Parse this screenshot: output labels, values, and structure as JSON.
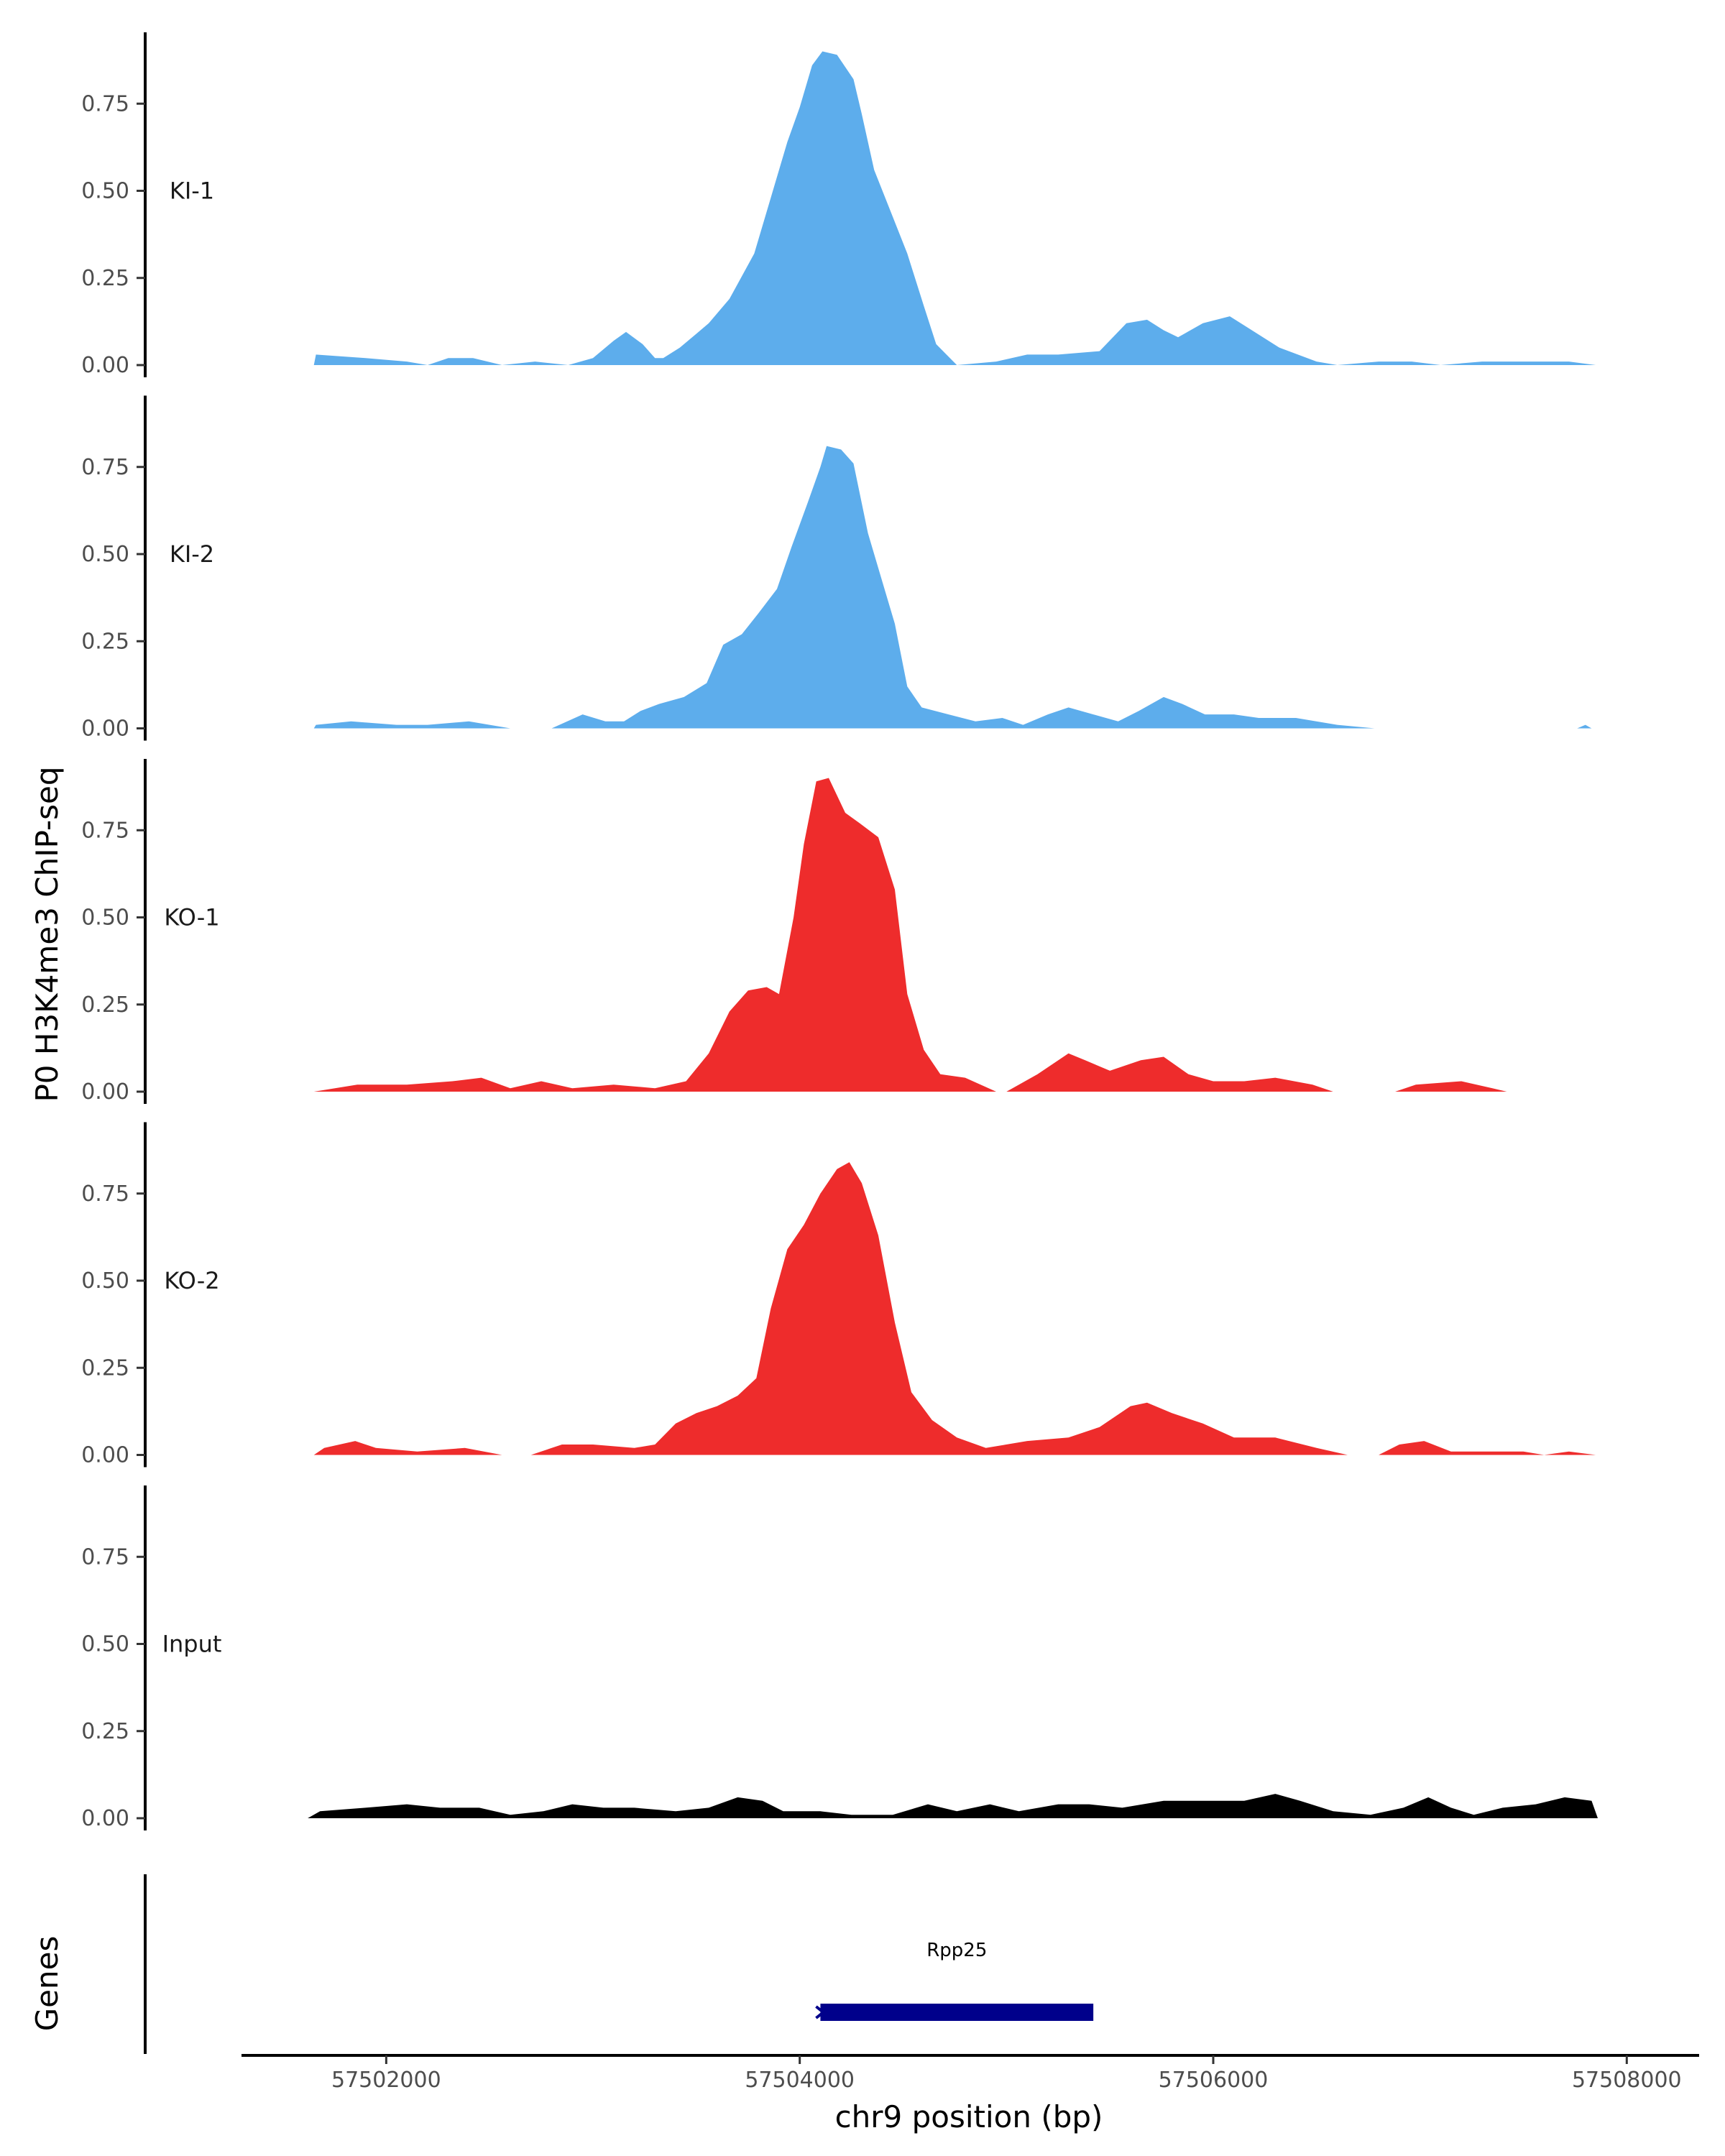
{
  "chart_data": {
    "type": "area",
    "ylabel": "P0 H3K4me3 ChIP-seq",
    "xlabel": "chr9 position (bp)",
    "xlim": [
      57501300,
      57508350
    ],
    "ylim": [
      0,
      0.95
    ],
    "grid": false,
    "y_ticks": [
      0,
      0.25,
      0.5,
      0.75
    ],
    "y_tick_labels": [
      "0.00",
      "0.25",
      "0.50",
      "0.75"
    ],
    "x_ticks": [
      57502000,
      57504000,
      57506000,
      57508000
    ],
    "x_tick_labels": [
      "57502000",
      "57504000",
      "57506000",
      "57508000"
    ],
    "tracks": [
      {
        "name": "KI-1",
        "color": "#5DADEC",
        "points": [
          [
            57501650,
            0
          ],
          [
            57501660,
            0.03
          ],
          [
            57501900,
            0.02
          ],
          [
            57502100,
            0.01
          ],
          [
            57502200,
            0
          ],
          [
            57502300,
            0.02
          ],
          [
            57502420,
            0.02
          ],
          [
            57502560,
            0
          ],
          [
            57502720,
            0.01
          ],
          [
            57502880,
            0
          ],
          [
            57503000,
            0.02
          ],
          [
            57503100,
            0.07
          ],
          [
            57503160,
            0.095
          ],
          [
            57503240,
            0.06
          ],
          [
            57503300,
            0.02
          ],
          [
            57503340,
            0.02
          ],
          [
            57503420,
            0.05
          ],
          [
            57503500,
            0.09
          ],
          [
            57503560,
            0.12
          ],
          [
            57503660,
            0.19
          ],
          [
            57503780,
            0.32
          ],
          [
            57503860,
            0.48
          ],
          [
            57503940,
            0.64
          ],
          [
            57504000,
            0.74
          ],
          [
            57504060,
            0.86
          ],
          [
            57504110,
            0.9
          ],
          [
            57504180,
            0.89
          ],
          [
            57504260,
            0.82
          ],
          [
            57504300,
            0.72
          ],
          [
            57504360,
            0.56
          ],
          [
            57504440,
            0.44
          ],
          [
            57504520,
            0.32
          ],
          [
            57504600,
            0.17
          ],
          [
            57504660,
            0.06
          ],
          [
            57504760,
            0
          ],
          [
            57504950,
            0.01
          ],
          [
            57505100,
            0.03
          ],
          [
            57505250,
            0.03
          ],
          [
            57505450,
            0.04
          ],
          [
            57505580,
            0.12
          ],
          [
            57505680,
            0.13
          ],
          [
            57505760,
            0.1
          ],
          [
            57505830,
            0.08
          ],
          [
            57505950,
            0.12
          ],
          [
            57506080,
            0.14
          ],
          [
            57506160,
            0.11
          ],
          [
            57506320,
            0.05
          ],
          [
            57506500,
            0.01
          ],
          [
            57506600,
            0
          ],
          [
            57506800,
            0.01
          ],
          [
            57506960,
            0.01
          ],
          [
            57507100,
            0
          ],
          [
            57507300,
            0.01
          ],
          [
            57507500,
            0.01
          ],
          [
            57507720,
            0.01
          ],
          [
            57507850,
            0
          ]
        ]
      },
      {
        "name": "KI-2",
        "color": "#5DADEC",
        "points": [
          [
            57501650,
            0
          ],
          [
            57501660,
            0.01
          ],
          [
            57501830,
            0.02
          ],
          [
            57502050,
            0.01
          ],
          [
            57502200,
            0.01
          ],
          [
            57502400,
            0.02
          ],
          [
            57502600,
            0
          ],
          [
            57502800,
            0
          ],
          [
            57502950,
            0.04
          ],
          [
            57503060,
            0.02
          ],
          [
            57503150,
            0.02
          ],
          [
            57503230,
            0.05
          ],
          [
            57503320,
            0.07
          ],
          [
            57503440,
            0.09
          ],
          [
            57503550,
            0.13
          ],
          [
            57503630,
            0.24
          ],
          [
            57503720,
            0.27
          ],
          [
            57503800,
            0.33
          ],
          [
            57503890,
            0.4
          ],
          [
            57503960,
            0.52
          ],
          [
            57504040,
            0.65
          ],
          [
            57504100,
            0.75
          ],
          [
            57504130,
            0.81
          ],
          [
            57504200,
            0.8
          ],
          [
            57504260,
            0.76
          ],
          [
            57504330,
            0.56
          ],
          [
            57504400,
            0.42
          ],
          [
            57504460,
            0.3
          ],
          [
            57504520,
            0.12
          ],
          [
            57504590,
            0.06
          ],
          [
            57504720,
            0.04
          ],
          [
            57504850,
            0.02
          ],
          [
            57504980,
            0.03
          ],
          [
            57505080,
            0.01
          ],
          [
            57505200,
            0.04
          ],
          [
            57505300,
            0.06
          ],
          [
            57505420,
            0.04
          ],
          [
            57505540,
            0.02
          ],
          [
            57505640,
            0.05
          ],
          [
            57505760,
            0.09
          ],
          [
            57505850,
            0.07
          ],
          [
            57505960,
            0.04
          ],
          [
            57506100,
            0.04
          ],
          [
            57506220,
            0.03
          ],
          [
            57506400,
            0.03
          ],
          [
            57506600,
            0.01
          ],
          [
            57506780,
            0
          ],
          [
            57507760,
            0
          ],
          [
            57507800,
            0.01
          ],
          [
            57507830,
            0
          ]
        ]
      },
      {
        "name": "KO-1",
        "color": "#EE2C2C",
        "points": [
          [
            57501650,
            0
          ],
          [
            57501860,
            0.02
          ],
          [
            57502100,
            0.02
          ],
          [
            57502320,
            0.03
          ],
          [
            57502460,
            0.04
          ],
          [
            57502600,
            0.01
          ],
          [
            57502750,
            0.03
          ],
          [
            57502900,
            0.01
          ],
          [
            57503100,
            0.02
          ],
          [
            57503300,
            0.01
          ],
          [
            57503450,
            0.03
          ],
          [
            57503560,
            0.11
          ],
          [
            57503660,
            0.23
          ],
          [
            57503750,
            0.29
          ],
          [
            57503840,
            0.3
          ],
          [
            57503900,
            0.28
          ],
          [
            57503970,
            0.5
          ],
          [
            57504020,
            0.71
          ],
          [
            57504080,
            0.89
          ],
          [
            57504140,
            0.9
          ],
          [
            57504220,
            0.8
          ],
          [
            57504290,
            0.77
          ],
          [
            57504380,
            0.73
          ],
          [
            57504460,
            0.58
          ],
          [
            57504520,
            0.28
          ],
          [
            57504600,
            0.12
          ],
          [
            57504680,
            0.05
          ],
          [
            57504800,
            0.04
          ],
          [
            57504950,
            0
          ],
          [
            57505000,
            0
          ],
          [
            57505150,
            0.05
          ],
          [
            57505300,
            0.11
          ],
          [
            57505380,
            0.09
          ],
          [
            57505500,
            0.06
          ],
          [
            57505650,
            0.09
          ],
          [
            57505760,
            0.1
          ],
          [
            57505880,
            0.05
          ],
          [
            57506000,
            0.03
          ],
          [
            57506150,
            0.03
          ],
          [
            57506300,
            0.04
          ],
          [
            57506480,
            0.02
          ],
          [
            57506580,
            0
          ],
          [
            57506880,
            0
          ],
          [
            57506980,
            0.02
          ],
          [
            57507200,
            0.03
          ],
          [
            57507350,
            0.01
          ],
          [
            57507420,
            0
          ]
        ]
      },
      {
        "name": "KO-2",
        "color": "#EE2C2C",
        "points": [
          [
            57501650,
            0
          ],
          [
            57501700,
            0.02
          ],
          [
            57501850,
            0.04
          ],
          [
            57501950,
            0.02
          ],
          [
            57502150,
            0.01
          ],
          [
            57502380,
            0.02
          ],
          [
            57502560,
            0
          ],
          [
            57502700,
            0
          ],
          [
            57502850,
            0.03
          ],
          [
            57503000,
            0.03
          ],
          [
            57503200,
            0.02
          ],
          [
            57503300,
            0.03
          ],
          [
            57503400,
            0.09
          ],
          [
            57503500,
            0.12
          ],
          [
            57503600,
            0.14
          ],
          [
            57503700,
            0.17
          ],
          [
            57503790,
            0.22
          ],
          [
            57503860,
            0.42
          ],
          [
            57503940,
            0.59
          ],
          [
            57504020,
            0.66
          ],
          [
            57504100,
            0.75
          ],
          [
            57504180,
            0.82
          ],
          [
            57504240,
            0.84
          ],
          [
            57504300,
            0.78
          ],
          [
            57504380,
            0.63
          ],
          [
            57504460,
            0.38
          ],
          [
            57504540,
            0.18
          ],
          [
            57504640,
            0.1
          ],
          [
            57504760,
            0.05
          ],
          [
            57504900,
            0.02
          ],
          [
            57505100,
            0.04
          ],
          [
            57505300,
            0.05
          ],
          [
            57505450,
            0.08
          ],
          [
            57505600,
            0.14
          ],
          [
            57505680,
            0.15
          ],
          [
            57505800,
            0.12
          ],
          [
            57505950,
            0.09
          ],
          [
            57506100,
            0.05
          ],
          [
            57506300,
            0.05
          ],
          [
            57506500,
            0.02
          ],
          [
            57506650,
            0
          ],
          [
            57506800,
            0
          ],
          [
            57506900,
            0.03
          ],
          [
            57507020,
            0.04
          ],
          [
            57507150,
            0.01
          ],
          [
            57507300,
            0.01
          ],
          [
            57507500,
            0.01
          ],
          [
            57507600,
            0
          ],
          [
            57507720,
            0.01
          ],
          [
            57507850,
            0
          ]
        ]
      },
      {
        "name": "Input",
        "color": "#000000",
        "points": [
          [
            57501620,
            0
          ],
          [
            57501680,
            0.02
          ],
          [
            57501900,
            0.03
          ],
          [
            57502100,
            0.04
          ],
          [
            57502260,
            0.03
          ],
          [
            57502450,
            0.03
          ],
          [
            57502600,
            0.01
          ],
          [
            57502760,
            0.02
          ],
          [
            57502900,
            0.04
          ],
          [
            57503050,
            0.03
          ],
          [
            57503200,
            0.03
          ],
          [
            57503400,
            0.02
          ],
          [
            57503560,
            0.03
          ],
          [
            57503700,
            0.06
          ],
          [
            57503820,
            0.05
          ],
          [
            57503920,
            0.02
          ],
          [
            57504100,
            0.02
          ],
          [
            57504250,
            0.01
          ],
          [
            57504450,
            0.01
          ],
          [
            57504620,
            0.04
          ],
          [
            57504760,
            0.02
          ],
          [
            57504920,
            0.04
          ],
          [
            57505060,
            0.02
          ],
          [
            57505250,
            0.04
          ],
          [
            57505400,
            0.04
          ],
          [
            57505560,
            0.03
          ],
          [
            57505760,
            0.05
          ],
          [
            57505960,
            0.05
          ],
          [
            57506150,
            0.05
          ],
          [
            57506300,
            0.07
          ],
          [
            57506420,
            0.05
          ],
          [
            57506580,
            0.02
          ],
          [
            57506760,
            0.01
          ],
          [
            57506920,
            0.03
          ],
          [
            57507040,
            0.06
          ],
          [
            57507150,
            0.03
          ],
          [
            57507260,
            0.01
          ],
          [
            57507400,
            0.03
          ],
          [
            57507560,
            0.04
          ],
          [
            57507700,
            0.06
          ],
          [
            57507830,
            0.05
          ],
          [
            57507860,
            0
          ]
        ]
      }
    ],
    "gene_track": {
      "label": "Genes",
      "genes": [
        {
          "name": "Rpp25",
          "start": 57504100,
          "end": 57505420,
          "color": "#00008B"
        }
      ]
    }
  }
}
